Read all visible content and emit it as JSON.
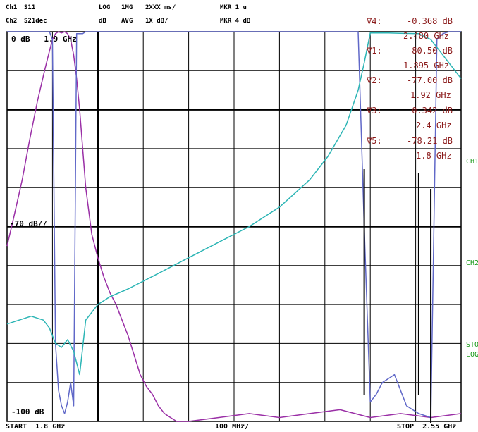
{
  "header": {
    "ch1_label": "Ch1",
    "ch1_param": "S11",
    "ch2_label": "Ch2",
    "ch2_param": "S21dec",
    "r1a": "LOG",
    "r1b": "1MG",
    "r1c": "2XXX ms/",
    "r2a": "dB",
    "r2b": "AVG",
    "r2c": "1X dB/",
    "mkr1": "MKR 1 u",
    "mkr2": "MKR 4 dB"
  },
  "reference": {
    "top_label": "0 dB   1.9 GHz",
    "mid_label": "-70 dB//",
    "bottom_label": "-100 dB"
  },
  "markers": [
    {
      "name": "∇4:",
      "value": "-0.368 dB",
      "freq": "2.480 GHz"
    },
    {
      "name": "∇1:",
      "value": "-80.50 dB",
      "freq": "1.895 GHz"
    },
    {
      "name": "∇2:",
      "value": "-77.00 dB",
      "freq": "1.92 GHz"
    },
    {
      "name": "∇3:",
      "value": "-0.342 dB",
      "freq": "2.4 GHz"
    },
    {
      "name": "∇5:",
      "value": "-78.21 dB",
      "freq": "1.8 GHz"
    }
  ],
  "right_labels": [
    "CH1",
    "CH2",
    "STOP",
    "LOG"
  ],
  "footer": {
    "start": "START  1.8 GHz",
    "span": "100 MHz/",
    "stop": "STOP  2.55 GHz"
  },
  "colors": {
    "s11": "#9a2fa6",
    "s21_filter": "#6068c8",
    "diplexer": "#2cb5b5",
    "marker_text": "#8b1a1a",
    "grid": "#000000"
  },
  "chart_data": {
    "type": "line",
    "xlabel": "",
    "ylabel": "",
    "xlim": [
      1.8,
      2.55
    ],
    "ylim": [
      -100,
      0
    ],
    "grid": true,
    "series": [
      {
        "x": [
          1.8,
          1.812,
          1.825,
          1.837,
          1.85,
          1.862,
          1.87,
          1.875,
          1.88,
          1.885,
          1.89,
          1.895,
          1.9,
          1.905,
          1.91,
          1.915,
          1.92,
          1.925,
          1.93,
          1.94,
          1.95,
          1.96,
          1.97,
          1.98,
          1.99,
          2.0,
          2.01,
          2.02,
          2.03,
          2.04,
          2.05,
          2.06,
          2.07,
          2.08,
          2.1,
          2.15,
          2.2,
          2.25,
          2.3,
          2.35,
          2.4,
          2.45,
          2.5,
          2.55
        ],
        "y": [
          -55,
          -47,
          -38,
          -28,
          -18,
          -10,
          -5,
          -2,
          -0.5,
          0,
          -0.3,
          0,
          -0.5,
          -2,
          -6,
          -12,
          -20,
          -30,
          -40,
          -52,
          -58,
          -63,
          -67,
          -70,
          -74,
          -78,
          -83,
          -88,
          -91,
          -93,
          -96,
          -98,
          -99,
          -100,
          -100,
          -99,
          -98,
          -99,
          -98,
          -97,
          -99,
          -98,
          -99,
          -98
        ]
      },
      {
        "x": [
          1.8,
          1.85,
          1.87,
          1.875,
          1.88,
          1.885,
          1.89,
          1.895,
          1.9,
          1.905,
          1.91,
          1.915,
          1.92,
          1.925,
          1.93,
          2.0,
          2.1,
          2.2,
          2.3,
          2.35,
          2.38,
          2.39,
          2.4,
          2.41,
          2.42,
          2.44,
          2.46,
          2.48,
          2.5,
          2.51,
          2.52,
          2.53,
          2.55
        ],
        "y": [
          0,
          0,
          0,
          -2,
          -80,
          -92,
          -96,
          -98,
          -95,
          -90,
          -96,
          -0.5,
          -0.5,
          -0.5,
          0,
          0,
          0,
          0,
          0,
          0,
          0,
          -50,
          -95,
          -93,
          -90,
          -88,
          -96,
          -98,
          -99,
          -2,
          -0.5,
          0,
          0
        ]
      },
      {
        "x": [
          1.8,
          1.82,
          1.84,
          1.86,
          1.87,
          1.88,
          1.89,
          1.9,
          1.91,
          1.92,
          1.93,
          1.95,
          1.97,
          2.0,
          2.05,
          2.1,
          2.15,
          2.2,
          2.25,
          2.3,
          2.33,
          2.36,
          2.38,
          2.39,
          2.4,
          2.43,
          2.45,
          2.48,
          2.5,
          2.52,
          2.55
        ],
        "y": [
          -75,
          -74,
          -73,
          -74,
          -76,
          -80,
          -81,
          -79,
          -82,
          -88,
          -74,
          -70,
          -68,
          -66,
          -62,
          -58,
          -54,
          -50,
          -45,
          -38,
          -32,
          -24,
          -15,
          -8,
          -0.3,
          -0.3,
          -0.4,
          -0.5,
          -2,
          -6,
          -12
        ]
      }
    ]
  }
}
